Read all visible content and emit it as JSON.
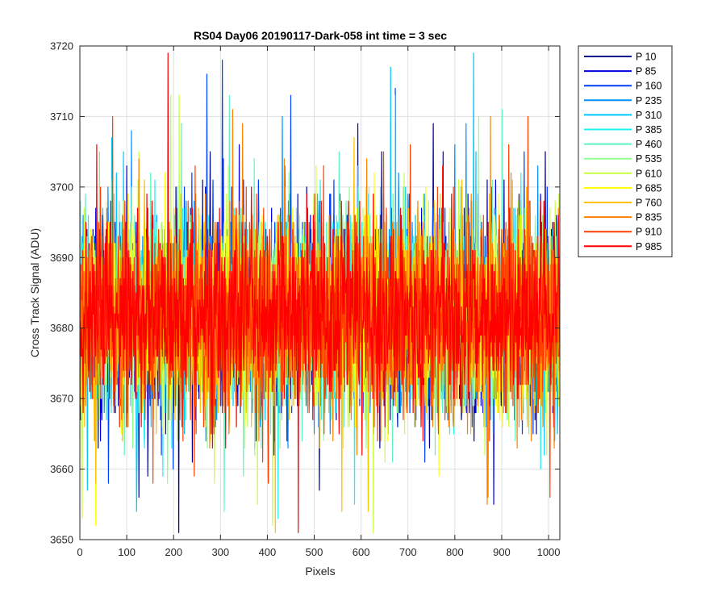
{
  "chart_data": {
    "type": "line",
    "title": "RS04 Day06 20190117-Dark-058 int time = 3 sec",
    "xlabel": "Pixels",
    "ylabel": "Cross Track Signal (ADU)",
    "xlim": [
      0,
      1024
    ],
    "ylim": [
      3650,
      3720
    ],
    "xticks": [
      0,
      100,
      200,
      300,
      400,
      500,
      600,
      700,
      800,
      900,
      1000
    ],
    "yticks": [
      3650,
      3660,
      3670,
      3680,
      3690,
      3700,
      3710,
      3720
    ],
    "grid": true,
    "legend_position": "outside-top-right",
    "n_points_per_series": 1024,
    "noise_mean": 3682,
    "noise_std": 6.5,
    "series": [
      {
        "name": "P 10",
        "color": "#00008f"
      },
      {
        "name": "P 85",
        "color": "#0000e0"
      },
      {
        "name": "P 160",
        "color": "#0040ff"
      },
      {
        "name": "P 235",
        "color": "#0090ff"
      },
      {
        "name": "P 310",
        "color": "#00c8ff"
      },
      {
        "name": "P 385",
        "color": "#20f0f0"
      },
      {
        "name": "P 460",
        "color": "#60f5c0"
      },
      {
        "name": "P 535",
        "color": "#90ff90"
      },
      {
        "name": "P 610",
        "color": "#c8ff40"
      },
      {
        "name": "P 685",
        "color": "#ffff00"
      },
      {
        "name": "P 760",
        "color": "#ffc000"
      },
      {
        "name": "P 835",
        "color": "#ff8000"
      },
      {
        "name": "P 910",
        "color": "#ff4000"
      },
      {
        "name": "P 985",
        "color": "#ff0000"
      }
    ]
  }
}
